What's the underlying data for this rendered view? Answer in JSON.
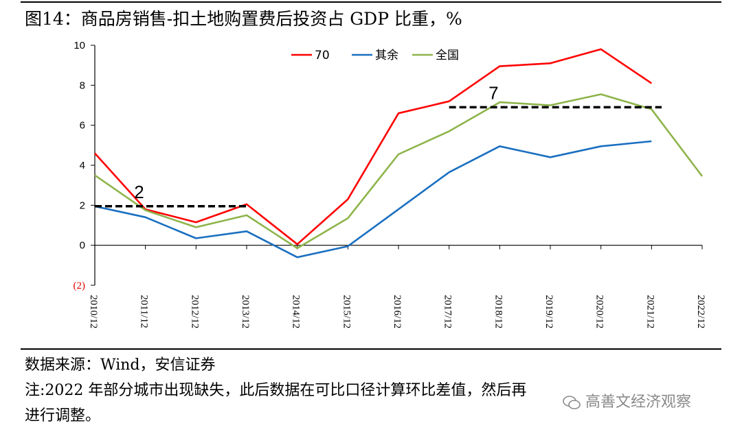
{
  "title": "图14：商品房销售-扣土地购置费后投资占 GDP 比重，%",
  "footer": {
    "source": "数据来源：Wind，安信证券",
    "note_line1": "注:2022 年部分城市出现缺失，此后数据在可比口径计算环比差值，然后再",
    "note_line2": "进行调整。"
  },
  "watermark": {
    "text": "高善文经济观察",
    "icon": "wechat-icon"
  },
  "chart_data": {
    "type": "line",
    "title": "图14：商品房销售-扣土地购置费后投资占 GDP 比重，%",
    "xlabel": "",
    "ylabel": "",
    "categories": [
      "2010/12",
      "2011/12",
      "2012/12",
      "2013/12",
      "2014/12",
      "2015/12",
      "2016/12",
      "2017/12",
      "2018/12",
      "2019/12",
      "2020/12",
      "2021/12",
      "2022/12"
    ],
    "yticks": [
      {
        "value": -2,
        "label": "(2)",
        "color": "#e00000"
      },
      {
        "value": 0,
        "label": "0"
      },
      {
        "value": 2,
        "label": "2"
      },
      {
        "value": 4,
        "label": "4"
      },
      {
        "value": 6,
        "label": "6"
      },
      {
        "value": 8,
        "label": "8"
      },
      {
        "value": 10,
        "label": "10"
      }
    ],
    "ylim": [
      -2,
      10
    ],
    "grid": false,
    "legend_position": "top-center",
    "series": [
      {
        "name": "70",
        "color": "#ff0000",
        "values": [
          4.6,
          1.8,
          1.15,
          2.05,
          0.05,
          2.3,
          6.6,
          7.2,
          8.95,
          9.1,
          9.8,
          8.1,
          null
        ]
      },
      {
        "name": "其余",
        "color": "#1a6fc0",
        "values": [
          1.95,
          1.4,
          0.35,
          0.7,
          -0.6,
          -0.05,
          1.8,
          3.65,
          4.95,
          4.4,
          4.95,
          5.2,
          null
        ]
      },
      {
        "name": "全国",
        "color": "#8db44a",
        "values": [
          3.5,
          1.75,
          0.9,
          1.5,
          -0.15,
          1.35,
          4.55,
          5.7,
          7.15,
          7.0,
          7.55,
          6.8,
          3.45
        ]
      }
    ],
    "annotations": [
      {
        "text": "2",
        "type": "dashed-line",
        "y": 1.95,
        "x_from": 0,
        "x_to": 3
      },
      {
        "text": "7",
        "type": "dashed-line",
        "y": 6.9,
        "x_from": 7,
        "x_to": 11.2
      }
    ]
  }
}
